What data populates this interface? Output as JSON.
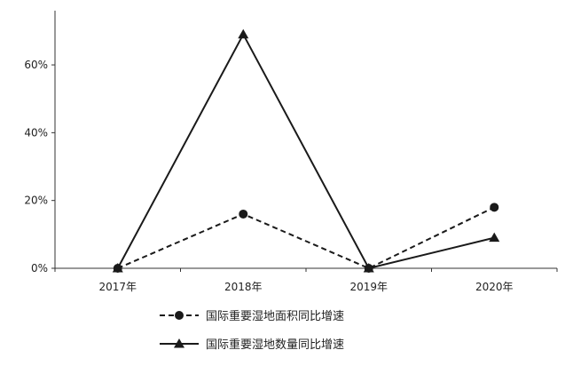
{
  "chart_data": {
    "type": "line",
    "categories": [
      "2017年",
      "2018年",
      "2019年",
      "2020年"
    ],
    "y_ticks": [
      "0%",
      "20%",
      "40%",
      "60%"
    ],
    "ylim": [
      0,
      0.76
    ],
    "grid": false,
    "legend_position": "bottom",
    "series": [
      {
        "name": "国际重要湿地面积同比增速",
        "values": [
          0.0,
          0.16,
          0.0,
          0.18
        ],
        "line_style": "dashed",
        "marker": "circle",
        "color": "#1a1a1a"
      },
      {
        "name": "国际重要湿地数量同比增速",
        "values": [
          0.0,
          0.69,
          0.0,
          0.09
        ],
        "line_style": "solid",
        "marker": "triangle",
        "color": "#1a1a1a"
      }
    ]
  }
}
